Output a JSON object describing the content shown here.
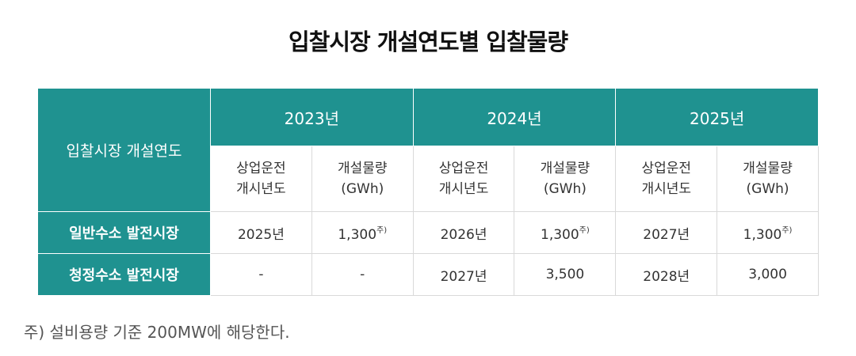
{
  "title": "입찰시장 개설연도별 입찰물량",
  "table": {
    "corner_header": "입찰시장 개설연도",
    "years": [
      "2023년",
      "2024년",
      "2025년"
    ],
    "sub_headers": {
      "start_year": [
        "상업운전",
        "개시년도"
      ],
      "volume": [
        "개설물량",
        "(GWh)"
      ]
    },
    "rows": [
      {
        "label": "일반수소 발전시장",
        "cells": [
          {
            "value": "2025년",
            "note": ""
          },
          {
            "value": "1,300",
            "note": "주)"
          },
          {
            "value": "2026년",
            "note": ""
          },
          {
            "value": "1,300",
            "note": "주)"
          },
          {
            "value": "2027년",
            "note": ""
          },
          {
            "value": "1,300",
            "note": "주)"
          }
        ]
      },
      {
        "label": "청정수소 발전시장",
        "cells": [
          {
            "value": "-",
            "note": ""
          },
          {
            "value": "-",
            "note": ""
          },
          {
            "value": "2027년",
            "note": ""
          },
          {
            "value": "3,500",
            "note": ""
          },
          {
            "value": "2028년",
            "note": ""
          },
          {
            "value": "3,000",
            "note": ""
          }
        ]
      }
    ]
  },
  "footnote": "주) 설비용량 기준 200MW에 해당한다.",
  "colors": {
    "header_bg": "#1f9290",
    "border": "#d9d9d9"
  }
}
